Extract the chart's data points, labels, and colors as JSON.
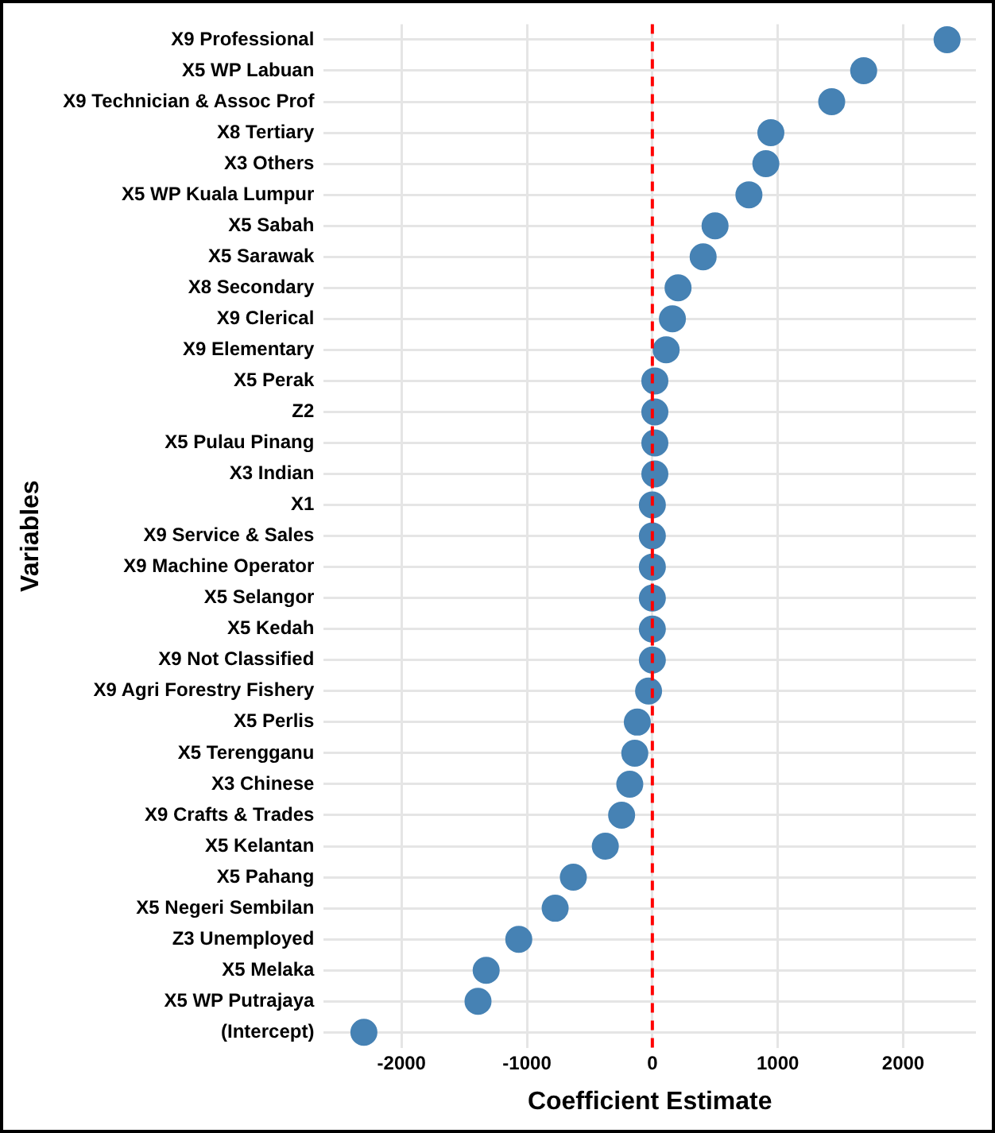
{
  "chart_data": {
    "type": "scatter",
    "xlabel": "Coefficient Estimate",
    "ylabel": "Variables",
    "categories": [
      "X9 Professional",
      "X5 WP Labuan",
      "X9 Technician & Assoc Prof",
      "X8 Tertiary",
      "X3 Others",
      "X5 WP Kuala Lumpur",
      "X5 Sabah",
      "X5 Sarawak",
      "X8 Secondary",
      "X9 Clerical",
      "X9 Elementary",
      "X5 Perak",
      "Z2",
      "X5 Pulau Pinang",
      "X3 Indian",
      "X1",
      "X9 Service & Sales",
      "X9 Machine Operator",
      "X5 Selangor",
      "X5 Kedah",
      "X9 Not Classified",
      "X9 Agri Forestry Fishery",
      "X5 Perlis",
      "X5 Terengganu",
      "X3 Chinese",
      "X9 Crafts & Trades",
      "X5 Kelantan",
      "X5 Pahang",
      "X5 Negeri Sembilan",
      "Z3 Unemployed",
      "X5 Melaka",
      "X5 WP Putrajaya",
      "(Intercept)"
    ],
    "orientation": "horizontal",
    "values": [
      2350,
      1685,
      1430,
      945,
      905,
      770,
      500,
      405,
      205,
      160,
      110,
      20,
      20,
      20,
      20,
      0,
      0,
      0,
      0,
      0,
      0,
      -30,
      -120,
      -140,
      -180,
      -245,
      -375,
      -630,
      -775,
      -1065,
      -1325,
      -1390,
      -2300
    ],
    "color": "#4682b4",
    "marker": "circle",
    "xlim": [
      -2620,
      2580
    ],
    "xticks": [
      -2000,
      -1000,
      0,
      1000,
      2000
    ],
    "grid": true,
    "legend": false,
    "ref_lines": [
      {
        "axis": "x",
        "value": 0,
        "color": "#ff0000",
        "line_style": "dashed"
      }
    ]
  }
}
